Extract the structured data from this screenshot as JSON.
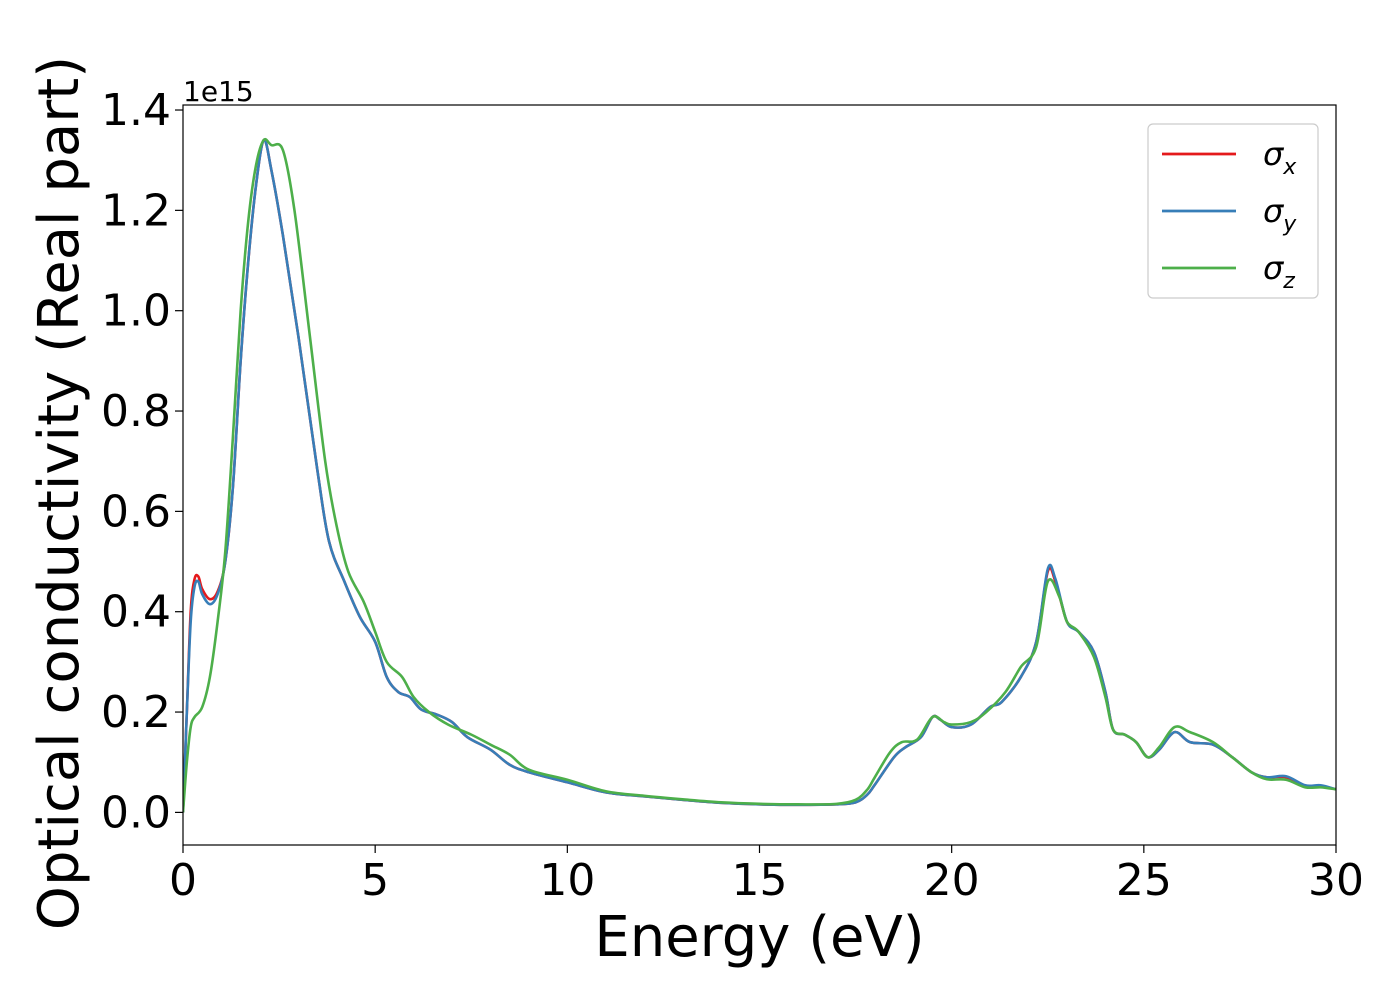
{
  "chart_data": {
    "type": "line",
    "xlabel": "Energy (eV)",
    "ylabel": "Optical conductivity (Real part)",
    "y_offset_text": "1e15",
    "xlim": [
      0,
      30
    ],
    "ylim": [
      -0.065,
      1.41
    ],
    "x_ticks": [
      0,
      5,
      10,
      15,
      20,
      25,
      30
    ],
    "x_tick_labels": [
      "0",
      "5",
      "10",
      "15",
      "20",
      "25",
      "30"
    ],
    "y_ticks": [
      0.0,
      0.2,
      0.4,
      0.6,
      0.8,
      1.0,
      1.2,
      1.4
    ],
    "y_tick_labels": [
      "0.0",
      "0.2",
      "0.4",
      "0.6",
      "0.8",
      "1.0",
      "1.2",
      "1.4"
    ],
    "grid": false,
    "legend_position": "top-right",
    "series": [
      {
        "name": "σ",
        "subscript": "x",
        "color": "#e41a1c",
        "points": [
          [
            0,
            0
          ],
          [
            0.1,
            0.2
          ],
          [
            0.2,
            0.4
          ],
          [
            0.3,
            0.465
          ],
          [
            0.4,
            0.47
          ],
          [
            0.5,
            0.445
          ],
          [
            0.7,
            0.425
          ],
          [
            0.9,
            0.44
          ],
          [
            1.1,
            0.5
          ],
          [
            1.3,
            0.65
          ],
          [
            1.5,
            0.9
          ],
          [
            1.7,
            1.1
          ],
          [
            1.9,
            1.25
          ],
          [
            2.1,
            1.34
          ],
          [
            2.3,
            1.28
          ],
          [
            2.6,
            1.15
          ],
          [
            3.0,
            0.95
          ],
          [
            3.5,
            0.68
          ],
          [
            3.8,
            0.54
          ],
          [
            4.2,
            0.46
          ],
          [
            4.6,
            0.39
          ],
          [
            5.0,
            0.34
          ],
          [
            5.3,
            0.27
          ],
          [
            5.6,
            0.24
          ],
          [
            5.9,
            0.23
          ],
          [
            6.2,
            0.205
          ],
          [
            6.6,
            0.195
          ],
          [
            7.0,
            0.18
          ],
          [
            7.4,
            0.15
          ],
          [
            8.0,
            0.125
          ],
          [
            8.5,
            0.095
          ],
          [
            9.0,
            0.08
          ],
          [
            10.0,
            0.06
          ],
          [
            11.0,
            0.04
          ],
          [
            12.0,
            0.032
          ],
          [
            13.0,
            0.025
          ],
          [
            14.0,
            0.019
          ],
          [
            15.0,
            0.016
          ],
          [
            16.0,
            0.015
          ],
          [
            17.0,
            0.016
          ],
          [
            17.5,
            0.02
          ],
          [
            17.8,
            0.035
          ],
          [
            18.0,
            0.055
          ],
          [
            18.5,
            0.11
          ],
          [
            18.8,
            0.13
          ],
          [
            19.2,
            0.15
          ],
          [
            19.5,
            0.19
          ],
          [
            19.7,
            0.185
          ],
          [
            20.0,
            0.17
          ],
          [
            20.5,
            0.175
          ],
          [
            21.0,
            0.21
          ],
          [
            21.3,
            0.22
          ],
          [
            21.8,
            0.27
          ],
          [
            22.2,
            0.34
          ],
          [
            22.5,
            0.48
          ],
          [
            22.7,
            0.46
          ],
          [
            23.0,
            0.38
          ],
          [
            23.3,
            0.36
          ],
          [
            23.7,
            0.32
          ],
          [
            24.0,
            0.24
          ],
          [
            24.2,
            0.165
          ],
          [
            24.5,
            0.155
          ],
          [
            24.8,
            0.14
          ],
          [
            25.1,
            0.11
          ],
          [
            25.4,
            0.125
          ],
          [
            25.8,
            0.16
          ],
          [
            26.2,
            0.14
          ],
          [
            26.8,
            0.135
          ],
          [
            27.3,
            0.11
          ],
          [
            27.8,
            0.08
          ],
          [
            28.2,
            0.07
          ],
          [
            28.7,
            0.07
          ],
          [
            29.2,
            0.052
          ],
          [
            29.6,
            0.052
          ],
          [
            30.0,
            0.046
          ]
        ]
      },
      {
        "name": "σ",
        "subscript": "y",
        "color": "#377eb8",
        "points": [
          [
            0,
            0
          ],
          [
            0.1,
            0.2
          ],
          [
            0.2,
            0.38
          ],
          [
            0.3,
            0.45
          ],
          [
            0.4,
            0.46
          ],
          [
            0.5,
            0.435
          ],
          [
            0.7,
            0.415
          ],
          [
            0.9,
            0.435
          ],
          [
            1.1,
            0.5
          ],
          [
            1.3,
            0.65
          ],
          [
            1.5,
            0.9
          ],
          [
            1.7,
            1.1
          ],
          [
            1.9,
            1.25
          ],
          [
            2.1,
            1.34
          ],
          [
            2.3,
            1.28
          ],
          [
            2.6,
            1.15
          ],
          [
            3.0,
            0.95
          ],
          [
            3.5,
            0.68
          ],
          [
            3.8,
            0.54
          ],
          [
            4.2,
            0.46
          ],
          [
            4.6,
            0.39
          ],
          [
            5.0,
            0.34
          ],
          [
            5.3,
            0.27
          ],
          [
            5.6,
            0.24
          ],
          [
            5.9,
            0.23
          ],
          [
            6.2,
            0.205
          ],
          [
            6.6,
            0.195
          ],
          [
            7.0,
            0.18
          ],
          [
            7.4,
            0.15
          ],
          [
            8.0,
            0.125
          ],
          [
            8.5,
            0.095
          ],
          [
            9.0,
            0.08
          ],
          [
            10.0,
            0.06
          ],
          [
            11.0,
            0.04
          ],
          [
            12.0,
            0.032
          ],
          [
            13.0,
            0.025
          ],
          [
            14.0,
            0.019
          ],
          [
            15.0,
            0.016
          ],
          [
            16.0,
            0.015
          ],
          [
            17.0,
            0.016
          ],
          [
            17.5,
            0.02
          ],
          [
            17.8,
            0.035
          ],
          [
            18.0,
            0.055
          ],
          [
            18.5,
            0.11
          ],
          [
            18.8,
            0.13
          ],
          [
            19.2,
            0.15
          ],
          [
            19.5,
            0.19
          ],
          [
            19.7,
            0.185
          ],
          [
            20.0,
            0.17
          ],
          [
            20.5,
            0.175
          ],
          [
            21.0,
            0.21
          ],
          [
            21.3,
            0.22
          ],
          [
            21.8,
            0.27
          ],
          [
            22.2,
            0.34
          ],
          [
            22.5,
            0.485
          ],
          [
            22.7,
            0.465
          ],
          [
            23.0,
            0.38
          ],
          [
            23.3,
            0.36
          ],
          [
            23.7,
            0.32
          ],
          [
            24.0,
            0.24
          ],
          [
            24.2,
            0.165
          ],
          [
            24.5,
            0.155
          ],
          [
            24.8,
            0.14
          ],
          [
            25.1,
            0.11
          ],
          [
            25.4,
            0.125
          ],
          [
            25.8,
            0.16
          ],
          [
            26.2,
            0.14
          ],
          [
            26.8,
            0.135
          ],
          [
            27.3,
            0.11
          ],
          [
            27.8,
            0.08
          ],
          [
            28.2,
            0.07
          ],
          [
            28.7,
            0.072
          ],
          [
            29.2,
            0.054
          ],
          [
            29.6,
            0.054
          ],
          [
            30.0,
            0.046
          ]
        ]
      },
      {
        "name": "σ",
        "subscript": "z",
        "color": "#4daf4a",
        "points": [
          [
            0,
            0
          ],
          [
            0.1,
            0.1
          ],
          [
            0.2,
            0.17
          ],
          [
            0.3,
            0.19
          ],
          [
            0.5,
            0.21
          ],
          [
            0.7,
            0.27
          ],
          [
            0.9,
            0.38
          ],
          [
            1.1,
            0.52
          ],
          [
            1.3,
            0.75
          ],
          [
            1.5,
            1.0
          ],
          [
            1.7,
            1.18
          ],
          [
            1.9,
            1.29
          ],
          [
            2.1,
            1.34
          ],
          [
            2.3,
            1.33
          ],
          [
            2.6,
            1.32
          ],
          [
            2.9,
            1.2
          ],
          [
            3.3,
            0.95
          ],
          [
            3.7,
            0.7
          ],
          [
            4.0,
            0.57
          ],
          [
            4.3,
            0.48
          ],
          [
            4.7,
            0.42
          ],
          [
            5.0,
            0.36
          ],
          [
            5.3,
            0.3
          ],
          [
            5.7,
            0.27
          ],
          [
            6.0,
            0.23
          ],
          [
            6.4,
            0.2
          ],
          [
            6.9,
            0.175
          ],
          [
            7.5,
            0.155
          ],
          [
            8.0,
            0.135
          ],
          [
            8.5,
            0.115
          ],
          [
            9.0,
            0.085
          ],
          [
            10.0,
            0.065
          ],
          [
            11.0,
            0.042
          ],
          [
            12.0,
            0.033
          ],
          [
            13.0,
            0.026
          ],
          [
            14.0,
            0.02
          ],
          [
            15.0,
            0.017
          ],
          [
            16.0,
            0.016
          ],
          [
            17.0,
            0.017
          ],
          [
            17.5,
            0.025
          ],
          [
            17.8,
            0.045
          ],
          [
            18.0,
            0.07
          ],
          [
            18.4,
            0.12
          ],
          [
            18.7,
            0.14
          ],
          [
            19.1,
            0.145
          ],
          [
            19.5,
            0.19
          ],
          [
            19.8,
            0.18
          ],
          [
            20.0,
            0.175
          ],
          [
            20.5,
            0.18
          ],
          [
            20.9,
            0.2
          ],
          [
            21.4,
            0.24
          ],
          [
            21.8,
            0.29
          ],
          [
            22.2,
            0.33
          ],
          [
            22.5,
            0.46
          ],
          [
            22.8,
            0.43
          ],
          [
            23.0,
            0.38
          ],
          [
            23.3,
            0.36
          ],
          [
            23.7,
            0.31
          ],
          [
            24.0,
            0.23
          ],
          [
            24.2,
            0.165
          ],
          [
            24.5,
            0.155
          ],
          [
            24.8,
            0.14
          ],
          [
            25.1,
            0.11
          ],
          [
            25.4,
            0.13
          ],
          [
            25.8,
            0.17
          ],
          [
            26.2,
            0.16
          ],
          [
            26.8,
            0.14
          ],
          [
            27.3,
            0.11
          ],
          [
            27.8,
            0.08
          ],
          [
            28.2,
            0.066
          ],
          [
            28.7,
            0.065
          ],
          [
            29.2,
            0.05
          ],
          [
            29.6,
            0.05
          ],
          [
            30.0,
            0.046
          ]
        ]
      }
    ]
  }
}
